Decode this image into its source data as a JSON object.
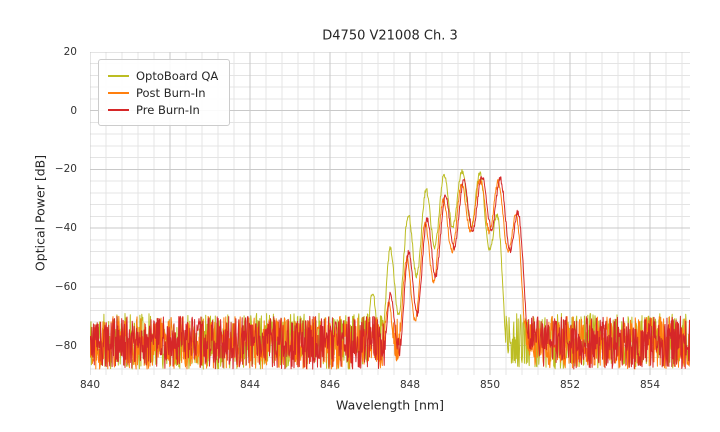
{
  "figure": {
    "background": "#ffffff"
  },
  "chart_data": {
    "type": "line",
    "title": "D4750 V21008 Ch. 3",
    "xlabel": "Wavelength [nm]",
    "ylabel": "Optical Power [dB]",
    "xlim": [
      840,
      855
    ],
    "ylim": [
      -90,
      20
    ],
    "xticks": [
      840,
      842,
      844,
      846,
      848,
      850,
      852,
      854
    ],
    "yticks": [
      20,
      0,
      -20,
      -40,
      -60,
      -80
    ],
    "minor_x_step": 0.4,
    "minor_y_step": 4,
    "grid": true,
    "grid_major_color": "#c9c9c9",
    "grid_minor_color": "#e4e4e4",
    "legend_position": "upper left",
    "noise_floor_db_range": [
      -88,
      -70
    ],
    "series": [
      {
        "name": "OptoBoard QA",
        "color": "#bcbd22",
        "seed": 11,
        "center_nm": 849.3,
        "peak_db": -20.5,
        "mode_spacing_nm": 0.45,
        "left_curvature": 8.2,
        "right_quartic": 24,
        "mode_depth_near_db": 17,
        "mode_depth_far_db": 30,
        "noise_lo_db": -88,
        "noise_hi_db": -69
      },
      {
        "name": "Post Burn-In",
        "color": "#ff7f0e",
        "seed": 22,
        "center_nm": 849.75,
        "peak_db": -23.5,
        "mode_spacing_nm": 0.46,
        "left_curvature": 8.0,
        "right_quartic": 18,
        "mode_depth_near_db": 16,
        "mode_depth_far_db": 28,
        "noise_lo_db": -88,
        "noise_hi_db": -70
      },
      {
        "name": "Pre Burn-In",
        "color": "#d62728",
        "seed": 33,
        "center_nm": 849.8,
        "peak_db": -22.5,
        "mode_spacing_nm": 0.46,
        "left_curvature": 7.6,
        "right_quartic": 18,
        "mode_depth_near_db": 16,
        "mode_depth_far_db": 28,
        "noise_lo_db": -88,
        "noise_hi_db": -70
      }
    ]
  }
}
